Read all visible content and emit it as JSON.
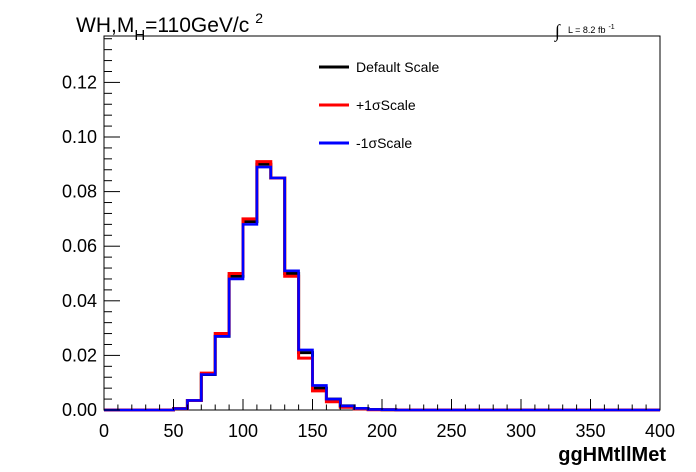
{
  "chart_data": {
    "type": "line",
    "title_main": "WH,M",
    "title_sub": "H",
    "title_rest": "=110GeV/c",
    "title_sup": "2",
    "luminosity_symbol": "∫",
    "luminosity_label": "L = 8.2 fb",
    "luminosity_sup": "-1",
    "xlabel": "ggHMtllMet",
    "ylabel": "",
    "xlim": [
      0,
      400
    ],
    "ylim": [
      0,
      0.137
    ],
    "x_ticks": [
      0,
      50,
      100,
      150,
      200,
      250,
      300,
      350,
      400
    ],
    "x_tick_labels": [
      "0",
      "50",
      "100",
      "150",
      "200",
      "250",
      "300",
      "350",
      "400"
    ],
    "y_ticks": [
      0.0,
      0.02,
      0.04,
      0.06,
      0.08,
      0.1,
      0.12
    ],
    "y_tick_labels": [
      "0.00",
      "0.02",
      "0.04",
      "0.06",
      "0.08",
      "0.10",
      "0.12"
    ],
    "grid": false,
    "legend_position": "top-center",
    "bin_edges": [
      0,
      10,
      20,
      30,
      40,
      50,
      60,
      70,
      80,
      90,
      100,
      110,
      120,
      130,
      140,
      150,
      160,
      170,
      180,
      190,
      200,
      210,
      220,
      230,
      240,
      250,
      260,
      270,
      280,
      290,
      300,
      310,
      320,
      330,
      340,
      350,
      360,
      370,
      380,
      390,
      400
    ],
    "series": [
      {
        "name": "Default Scale",
        "color": "#000000",
        "values": [
          0,
          0,
          0,
          0,
          0,
          0.0005,
          0.0035,
          0.013,
          0.027,
          0.049,
          0.069,
          0.09,
          0.085,
          0.05,
          0.021,
          0.008,
          0.004,
          0.0015,
          0.0005,
          0.0002,
          0.0001,
          0,
          0,
          0,
          0,
          0,
          0,
          0,
          0,
          0,
          0,
          0,
          0,
          0,
          0,
          0,
          0,
          0,
          0,
          0
        ]
      },
      {
        "name": "+1σScale",
        "color": "#ff0000",
        "values": [
          0,
          0,
          0,
          0,
          0,
          0.0005,
          0.0035,
          0.0135,
          0.028,
          0.05,
          0.07,
          0.091,
          0.085,
          0.049,
          0.019,
          0.007,
          0.003,
          0.001,
          0.0004,
          0.0001,
          0.0001,
          0,
          0,
          0,
          0,
          0,
          0,
          0,
          0,
          0,
          0,
          0,
          0,
          0,
          0,
          0,
          0,
          0,
          0,
          0
        ]
      },
      {
        "name": "-1σScale",
        "color": "#0000ff",
        "values": [
          0,
          0,
          0,
          0,
          0,
          0.0005,
          0.0035,
          0.013,
          0.027,
          0.048,
          0.068,
          0.089,
          0.085,
          0.051,
          0.022,
          0.009,
          0.004,
          0.0015,
          0.0006,
          0.0002,
          0.0001,
          0,
          0,
          0,
          0,
          0,
          0,
          0,
          0,
          0,
          0,
          0,
          0,
          0,
          0,
          0,
          0,
          0,
          0,
          0
        ]
      }
    ]
  }
}
